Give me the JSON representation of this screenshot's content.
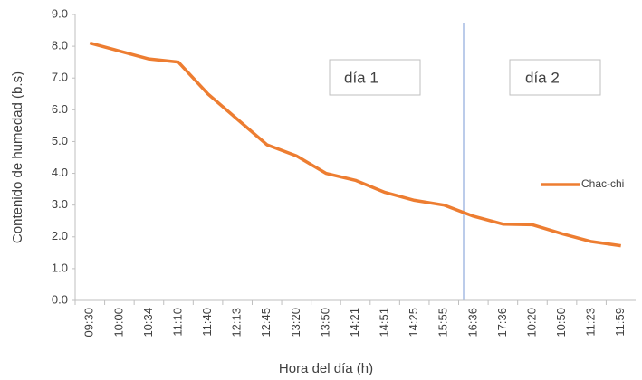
{
  "chart_data": {
    "type": "line",
    "x_label": "Hora del día (h)",
    "y_label": "Contenido de humedad (b.s)",
    "categories": [
      "09:30",
      "10:00",
      "10:34",
      "11:10",
      "11:40",
      "12:13",
      "12:45",
      "13:20",
      "13:50",
      "14:21",
      "14:51",
      "14:25",
      "15:55",
      "16:36",
      "17:36",
      "10:20",
      "10:50",
      "11:23",
      "11:59"
    ],
    "series": [
      {
        "name": "Chac-chi",
        "color": "#ed7d31",
        "values": [
          8.1,
          7.85,
          7.6,
          7.5,
          6.5,
          5.7,
          4.9,
          4.55,
          4.0,
          3.78,
          3.4,
          3.15,
          3.0,
          2.65,
          2.4,
          2.38,
          2.1,
          1.85,
          1.72
        ]
      }
    ],
    "ylim": [
      0,
      9
    ],
    "yticks": [
      {
        "value": 0,
        "label": "0.0"
      },
      {
        "value": 1,
        "label": "1.0"
      },
      {
        "value": 2,
        "label": "2.0"
      },
      {
        "value": 3,
        "label": "3.0"
      },
      {
        "value": 4,
        "label": "4.0"
      },
      {
        "value": 5,
        "label": "5.0"
      },
      {
        "value": 6,
        "label": "6.0"
      },
      {
        "value": 7,
        "label": "7.0"
      },
      {
        "value": 8,
        "label": "8.0"
      },
      {
        "value": 9,
        "label": "9.0"
      }
    ],
    "annotations": [
      "día 1",
      "día 2"
    ],
    "legend": "right"
  }
}
